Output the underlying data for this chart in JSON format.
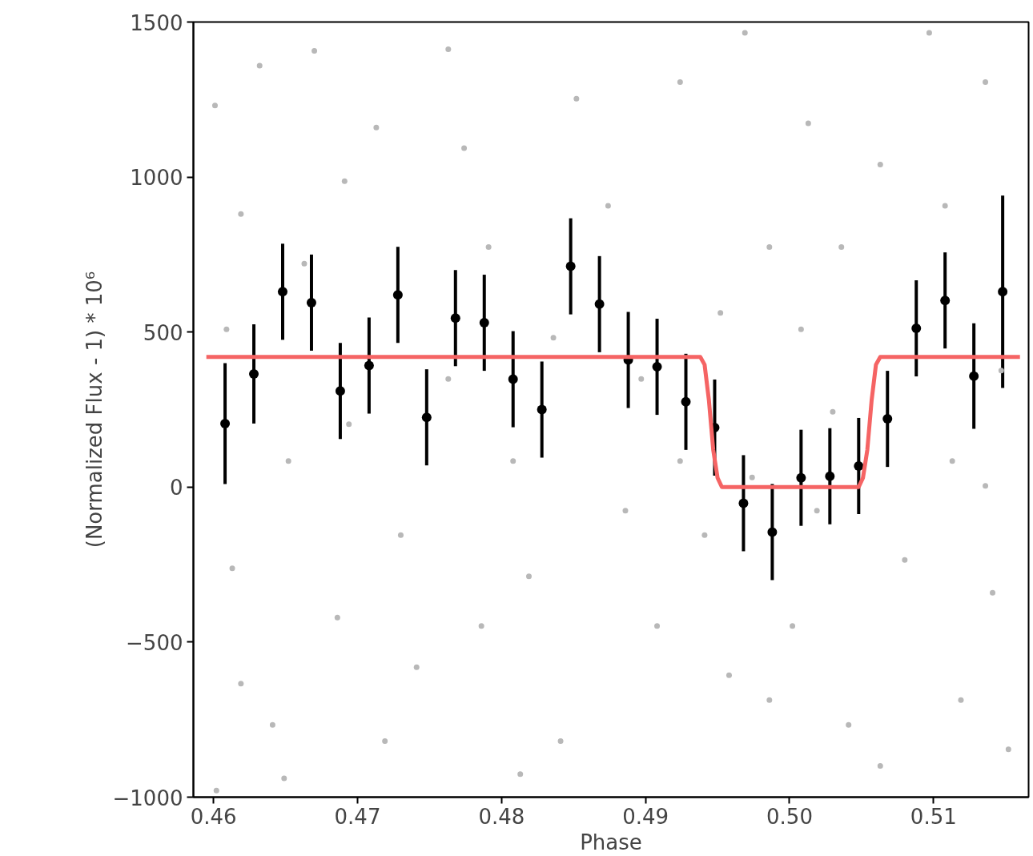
{
  "chart_data": {
    "type": "scatter",
    "xlabel": "Phase",
    "ylabel": "(Normalized Flux - 1) * 10⁶",
    "xlim": [
      0.4586,
      0.5166
    ],
    "ylim": [
      -1000,
      1500
    ],
    "xticks": [
      0.46,
      0.47,
      0.48,
      0.49,
      {
        "value": 0.5,
        "label": "0.50"
      },
      0.51
    ],
    "yticks": [
      {
        "value": -1000,
        "label": "−1000"
      },
      {
        "value": -500,
        "label": "−500"
      },
      0,
      500,
      1000,
      1500
    ],
    "grid": false,
    "series": [
      {
        "color": "#b8b8b8",
        "marker": "circle",
        "x": [
          0.4601,
          0.4632,
          0.467,
          0.4609,
          0.4613,
          0.4619,
          0.4649,
          0.4602,
          0.4641,
          0.4691,
          0.4694,
          0.4713,
          0.4741,
          0.4763,
          0.4774,
          0.4791,
          0.4808,
          0.4819,
          0.4841,
          0.4852,
          0.4874,
          0.4897,
          0.4908,
          0.4924,
          0.4941,
          0.4958,
          0.4969,
          0.4986,
          0.5002,
          0.5013,
          0.503,
          0.5041,
          0.5063,
          0.508,
          0.5097,
          0.5108,
          0.5119,
          0.5136,
          0.5147,
          0.5152,
          0.5141,
          0.5063,
          0.5019,
          0.4974,
          0.4952,
          0.4886,
          0.4836,
          0.4786,
          0.473,
          0.4686,
          0.4652,
          0.4619,
          0.4663,
          0.4763,
          0.4924,
          0.5036,
          0.5113,
          0.5008,
          0.4986,
          0.4813,
          0.4719,
          0.5136
        ],
        "values": [
          1231,
          1359,
          1407,
          509,
          -262,
          -634,
          -939,
          -979,
          -767,
          987,
          203,
          1160,
          -581,
          1412,
          1093,
          774,
          84,
          -288,
          -819,
          1253,
          907,
          349,
          -448,
          1306,
          -155,
          -607,
          1465,
          774,
          -448,
          1173,
          243,
          -767,
          1040,
          -235,
          1465,
          907,
          -687,
          1306,
          376,
          -846,
          -341,
          -899,
          -76,
          31,
          562,
          -76,
          482,
          -448,
          -155,
          -421,
          84,
          881,
          721,
          349,
          84,
          774,
          84,
          509,
          -687,
          -926,
          -819,
          4
        ]
      },
      {
        "color": "#000000",
        "marker": "circle",
        "x": [
          0.4608,
          0.4628,
          0.4648,
          0.4668,
          0.4688,
          0.4708,
          0.4728,
          0.4748,
          0.4768,
          0.4788,
          0.4808,
          0.4828,
          0.4848,
          0.4868,
          0.4888,
          0.4908,
          0.4928,
          0.4948,
          0.4968,
          0.4988,
          0.5008,
          0.5028,
          0.5048,
          0.5068,
          0.5088,
          0.5108,
          0.5128,
          0.5148
        ],
        "values": [
          205,
          365,
          630,
          595,
          310,
          392,
          620,
          225,
          545,
          530,
          348,
          250,
          712,
          590,
          410,
          388,
          275,
          192,
          -52,
          -145,
          30,
          35,
          68,
          220,
          512,
          602,
          358,
          630
        ],
        "errors": [
          195,
          160,
          155,
          155,
          155,
          155,
          155,
          155,
          155,
          155,
          155,
          155,
          155,
          155,
          155,
          155,
          155,
          155,
          155,
          155,
          155,
          155,
          155,
          155,
          155,
          155,
          170,
          310
        ]
      },
      {
        "type": "line",
        "color": "#f56464",
        "line_style": "solid",
        "x": [
          0.4595,
          0.4938,
          0.4941,
          0.4944,
          0.4947,
          0.495,
          0.4953,
          0.5048,
          0.5051,
          0.5054,
          0.5057,
          0.506,
          0.5063,
          0.516
        ],
        "values": [
          420,
          420,
          395,
          280,
          120,
          30,
          0,
          0,
          30,
          120,
          280,
          395,
          420,
          420
        ]
      }
    ]
  }
}
